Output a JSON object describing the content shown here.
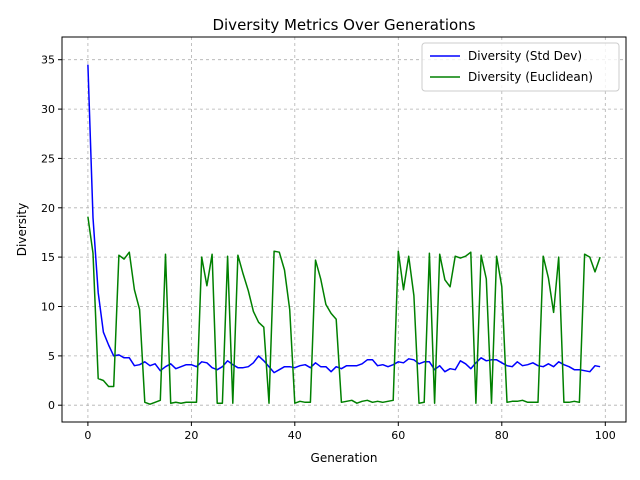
{
  "chart_data": {
    "type": "line",
    "title": "Diversity Metrics Over Generations",
    "xlabel": "Generation",
    "ylabel": "Diversity",
    "xlim": [
      -5,
      104
    ],
    "ylim": [
      -1.7,
      37.3
    ],
    "xticks": [
      0,
      20,
      40,
      60,
      80,
      100
    ],
    "yticks": [
      0,
      5,
      10,
      15,
      20,
      25,
      30,
      35
    ],
    "grid": true,
    "legend_position": "top-right",
    "x": [
      0,
      1,
      2,
      3,
      4,
      5,
      6,
      7,
      8,
      9,
      10,
      11,
      12,
      13,
      14,
      15,
      16,
      17,
      18,
      19,
      20,
      21,
      22,
      23,
      24,
      25,
      26,
      27,
      28,
      29,
      30,
      31,
      32,
      33,
      34,
      35,
      36,
      37,
      38,
      39,
      40,
      41,
      42,
      43,
      44,
      45,
      46,
      47,
      48,
      49,
      50,
      51,
      52,
      53,
      54,
      55,
      56,
      57,
      58,
      59,
      60,
      61,
      62,
      63,
      64,
      65,
      66,
      67,
      68,
      69,
      70,
      71,
      72,
      73,
      74,
      75,
      76,
      77,
      78,
      79,
      80,
      81,
      82,
      83,
      84,
      85,
      86,
      87,
      88,
      89,
      90,
      91,
      92,
      93,
      94,
      95,
      96,
      97,
      98,
      99
    ],
    "series": [
      {
        "name": "Diversity (Std Dev)",
        "color": "#0000ff",
        "values": [
          34.5,
          19.0,
          11.4,
          7.4,
          6.1,
          5.0,
          5.1,
          4.8,
          4.8,
          4.0,
          4.1,
          4.4,
          4.0,
          4.2,
          3.5,
          3.9,
          4.2,
          3.7,
          3.9,
          4.1,
          4.1,
          3.9,
          4.4,
          4.3,
          3.8,
          3.6,
          3.9,
          4.5,
          4.1,
          3.8,
          3.8,
          3.9,
          4.3,
          5.0,
          4.5,
          3.9,
          3.3,
          3.6,
          3.9,
          3.9,
          3.8,
          4.0,
          4.1,
          3.8,
          4.3,
          3.9,
          3.9,
          3.4,
          3.9,
          3.7,
          4.0,
          4.0,
          4.0,
          4.2,
          4.6,
          4.6,
          4.0,
          4.1,
          3.9,
          4.1,
          4.4,
          4.3,
          4.7,
          4.6,
          4.2,
          4.4,
          4.4,
          3.6,
          4.0,
          3.4,
          3.7,
          3.6,
          4.5,
          4.2,
          3.7,
          4.3,
          4.8,
          4.5,
          4.6,
          4.6,
          4.3,
          4.0,
          3.9,
          4.4,
          4.0,
          4.1,
          4.3,
          4.0,
          3.9,
          4.2,
          3.9,
          4.4,
          4.1,
          3.9,
          3.6,
          3.6,
          3.5,
          3.4,
          4.0,
          3.9
        ]
      },
      {
        "name": "Diversity (Euclidean)",
        "color": "#008000",
        "values": [
          19.1,
          15.4,
          2.7,
          2.5,
          1.9,
          1.9,
          15.2,
          14.8,
          15.5,
          11.7,
          9.7,
          0.3,
          0.1,
          0.3,
          0.5,
          15.3,
          0.2,
          0.3,
          0.2,
          0.3,
          0.3,
          0.3,
          15.0,
          12.1,
          15.3,
          0.2,
          0.2,
          15.1,
          0.2,
          15.2,
          13.3,
          11.6,
          9.5,
          8.4,
          7.9,
          0.2,
          15.6,
          15.5,
          13.7,
          9.7,
          0.2,
          0.4,
          0.3,
          0.3,
          14.7,
          12.8,
          10.2,
          9.3,
          8.7,
          0.3,
          0.4,
          0.5,
          0.2,
          0.4,
          0.5,
          0.3,
          0.4,
          0.3,
          0.4,
          0.5,
          15.6,
          11.7,
          15.1,
          11.1,
          0.2,
          0.3,
          15.4,
          0.2,
          15.3,
          12.7,
          12.0,
          15.1,
          14.9,
          15.1,
          15.5,
          0.2,
          15.2,
          12.8,
          0.2,
          15.1,
          12.0,
          0.3,
          0.4,
          0.4,
          0.5,
          0.3,
          0.3,
          0.3,
          15.1,
          12.9,
          9.4,
          15.0,
          0.3,
          0.3,
          0.4,
          0.3,
          15.3,
          15.0,
          13.5,
          15.0
        ]
      }
    ]
  }
}
